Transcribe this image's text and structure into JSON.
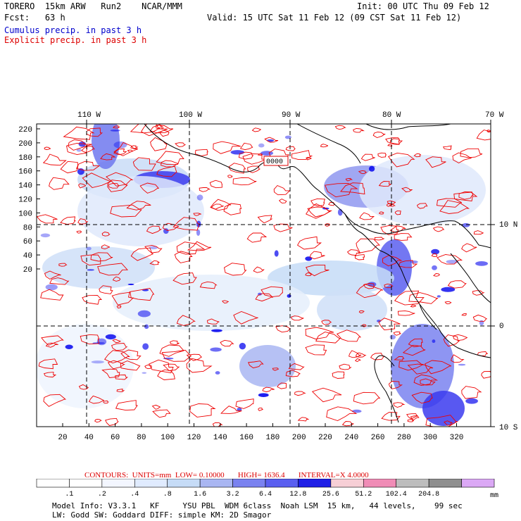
{
  "header": {
    "model": "TORERO",
    "resolution": "15km ARW",
    "run": "Run2",
    "org": "NCAR/MMM",
    "init": "Init: 00 UTC Thu 09 Feb 12",
    "fcst_label": "Fcst:",
    "fcst_value": "63 h",
    "valid": "Valid: 15 UTC Sat 11 Feb 12 (09 CST Sat 11 Feb 12)",
    "legend_cumulus": "Cumulus precip. in past 3 h",
    "legend_explicit": "Explicit precip. in past 3 h"
  },
  "map": {
    "top_lon_labels": [
      "110 W",
      "100 W",
      "90 W",
      "80 W",
      "70 W"
    ],
    "right_lat_labels": [
      "10 N",
      "0",
      "10 S"
    ],
    "left_y_ticks": [
      "220",
      "200",
      "180",
      "160",
      "140",
      "120",
      "100",
      "80",
      "60",
      "40",
      "20"
    ],
    "bottom_x_ticks": [
      "20",
      "40",
      "60",
      "80",
      "100",
      "120",
      "140",
      "160",
      "180",
      "200",
      "220",
      "240",
      "260",
      "280",
      "300",
      "320"
    ],
    "inset_label": "0000",
    "colors": {
      "cumulus": "#0000ee",
      "explicit": "#ee0000",
      "coast": "#000000",
      "grid": "#000000"
    }
  },
  "contour_info": {
    "label": "CONTOURS:",
    "units": "UNITS=mm",
    "low": "LOW= 0.10000",
    "high": "HIGH= 1636.4",
    "interval": "INTERVAL=X 4.0000"
  },
  "colorbar": {
    "unit": "mm",
    "bins": [
      {
        "label": ".1",
        "color": "#ffffff"
      },
      {
        "label": ".2",
        "color": "#ffffff"
      },
      {
        "label": ".4",
        "color": "#f3f6ff"
      },
      {
        "label": ".8",
        "color": "#e0ebff"
      },
      {
        "label": "1.6",
        "color": "#c6dcf7"
      },
      {
        "label": "3.2",
        "color": "#a9b6f2"
      },
      {
        "label": "6.4",
        "color": "#7a82f0"
      },
      {
        "label": "12.8",
        "color": "#5a5ff0"
      },
      {
        "label": "25.6",
        "color": "#1f1fe6"
      },
      {
        "label": "51.2",
        "color": "#f7cfd6"
      },
      {
        "label": "102.4",
        "color": "#f08cb6"
      },
      {
        "label": "204.8",
        "color": "#bdbdbd"
      },
      {
        "label": "",
        "color": "#8f8f8f"
      },
      {
        "label": "",
        "color": "#dba8f5"
      }
    ]
  },
  "footer": {
    "line1": "Model Info: V3.3.1   KF     YSU PBL  WDM 6class  Noah LSM  15 km,   44 levels,    99 sec",
    "line2": "LW: Godd SW: Goddard DIFF: simple KM: 2D Smagor"
  }
}
